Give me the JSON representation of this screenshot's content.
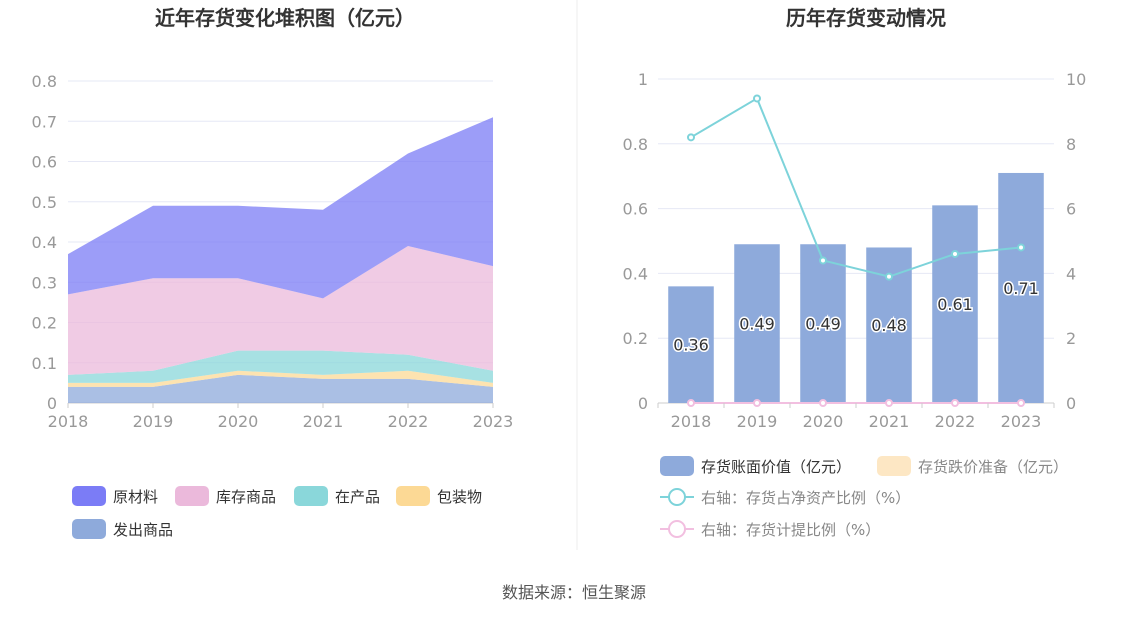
{
  "source": "数据来源：恒生聚源",
  "chart_data": [
    {
      "type": "area",
      "stacked": true,
      "title": "近年存货变化堆积图（亿元）",
      "categories": [
        "2018",
        "2019",
        "2020",
        "2021",
        "2022",
        "2023"
      ],
      "yticks": [
        "0",
        "0.1",
        "0.2",
        "0.3",
        "0.4",
        "0.5",
        "0.6",
        "0.7",
        "0.8"
      ],
      "ylim": [
        0,
        0.8
      ],
      "grid": true,
      "legend_position": "bottom",
      "series": [
        {
          "name": "发出商品",
          "color": "#8eaadb",
          "values": [
            0.04,
            0.04,
            0.07,
            0.06,
            0.06,
            0.04
          ]
        },
        {
          "name": "包装物",
          "color": "#fcd995",
          "values": [
            0.01,
            0.01,
            0.01,
            0.01,
            0.02,
            0.01
          ]
        },
        {
          "name": "在产品",
          "color": "#8ad7da",
          "values": [
            0.02,
            0.03,
            0.05,
            0.06,
            0.04,
            0.03
          ]
        },
        {
          "name": "库存商品",
          "color": "#ebb9db",
          "values": [
            0.2,
            0.23,
            0.18,
            0.13,
            0.27,
            0.26
          ]
        },
        {
          "name": "原材料",
          "color": "#7b7cf6",
          "values": [
            0.1,
            0.18,
            0.18,
            0.22,
            0.23,
            0.37
          ]
        }
      ],
      "legend_order": [
        "原材料",
        "库存商品",
        "在产品",
        "包装物",
        "发出商品"
      ]
    },
    {
      "type": "bar",
      "title": "历年存货变动情况",
      "categories": [
        "2018",
        "2019",
        "2020",
        "2021",
        "2022",
        "2023"
      ],
      "left_yticks": [
        "0",
        "0.2",
        "0.4",
        "0.6",
        "0.8",
        "1"
      ],
      "left_ylim": [
        0,
        1
      ],
      "right_yticks": [
        "0",
        "2",
        "4",
        "6",
        "8",
        "10"
      ],
      "right_ylim": [
        0,
        10
      ],
      "grid": true,
      "legend_position": "bottom",
      "series": [
        {
          "name": "存货账面价值（亿元）",
          "type": "bar",
          "axis": "left",
          "color": "#8eaadb",
          "values": [
            0.36,
            0.49,
            0.49,
            0.48,
            0.61,
            0.71
          ],
          "labels": [
            "0.36",
            "0.49",
            "0.49",
            "0.48",
            "0.61",
            "0.71"
          ]
        },
        {
          "name": "存货跌价准备（亿元）",
          "type": "bar",
          "axis": "left",
          "color": "#fde7c4",
          "values": [
            0,
            0,
            0,
            0,
            0,
            0
          ]
        },
        {
          "name": "右轴：存货占净资产比例（%）",
          "type": "line",
          "axis": "right",
          "color": "#7dd3da",
          "values": [
            8.2,
            9.4,
            4.4,
            3.9,
            4.6,
            4.8
          ]
        },
        {
          "name": "右轴：存货计提比例（%）",
          "type": "line",
          "axis": "right",
          "color": "#f2bfe0",
          "values": [
            0,
            0,
            0,
            0,
            0,
            0
          ]
        }
      ]
    }
  ]
}
